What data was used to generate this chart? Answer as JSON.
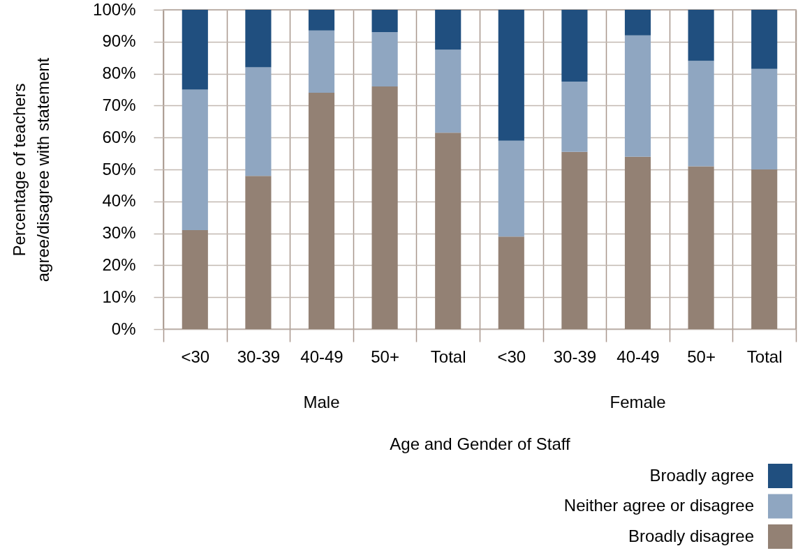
{
  "chart_data": {
    "type": "bar",
    "stacked": true,
    "xlabel": "Age and Gender of Staff",
    "ylabel": "Percentage of teachers agree/disagree with statement",
    "categories": [
      "<30",
      "30-39",
      "40-49",
      "50+",
      "Total",
      "<30",
      "30-39",
      "40-49",
      "50+",
      "Total"
    ],
    "annotations": [
      "Male",
      "Female"
    ],
    "series": [
      {
        "name": "Broadly disagree",
        "color": "#938174",
        "values": [
          31,
          48,
          74,
          76,
          61.5,
          29,
          55.5,
          54,
          51,
          50
        ]
      },
      {
        "name": "Neither agree or disagree",
        "color": "#8fa6c1",
        "values": [
          44,
          34,
          19.5,
          17,
          26,
          30,
          22,
          38,
          33,
          31.5
        ]
      },
      {
        "name": "Broadly agree",
        "color": "#204f7f",
        "values": [
          25,
          18,
          6.5,
          7,
          12.5,
          41,
          22.5,
          8,
          16,
          18.5
        ]
      }
    ],
    "ylim": [
      0,
      100
    ],
    "yticks": [
      {
        "value": 0,
        "label": "0%"
      },
      {
        "value": 10,
        "label": "10%"
      },
      {
        "value": 20,
        "label": "20%"
      },
      {
        "value": 30,
        "label": "30%"
      },
      {
        "value": 40,
        "label": "40%"
      },
      {
        "value": 50,
        "label": "50%"
      },
      {
        "value": 60,
        "label": "60%"
      },
      {
        "value": 70,
        "label": "70%"
      },
      {
        "value": 80,
        "label": "80%"
      },
      {
        "value": 90,
        "label": "90%"
      },
      {
        "value": 100,
        "label": "100%"
      }
    ],
    "grid": true,
    "legend": "bottom right"
  }
}
